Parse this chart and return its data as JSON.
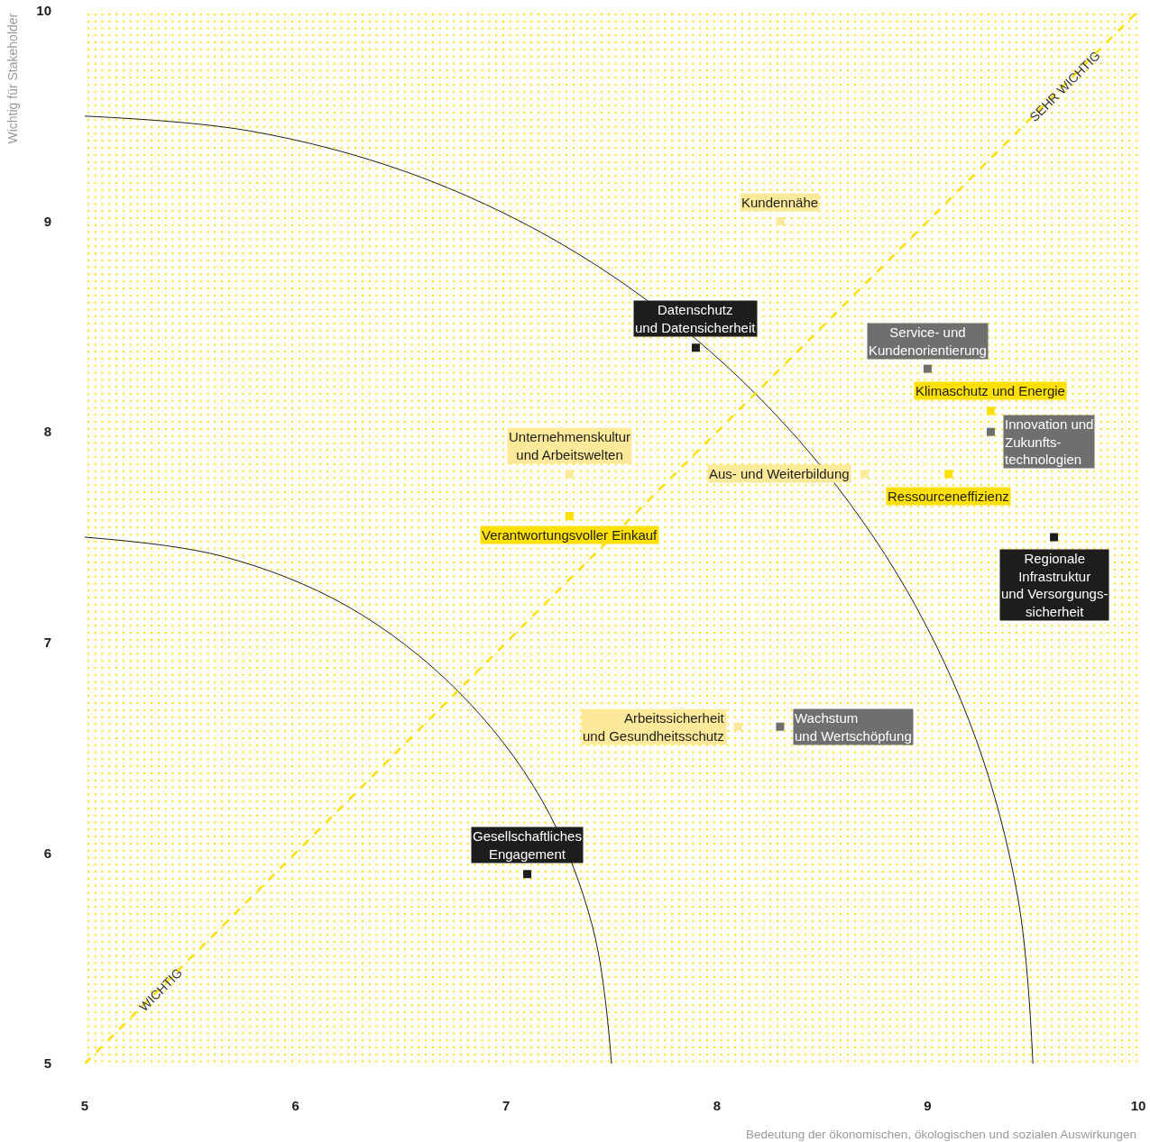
{
  "chart_data": {
    "type": "scatter",
    "xlabel": "Bedeutung der ökonomischen, ökologischen und sozialen Auswirkungen",
    "ylabel": "Wichtig für Stakeholder",
    "xlim": [
      5,
      10
    ],
    "ylim": [
      5,
      10
    ],
    "xticks": [
      5,
      6,
      7,
      8,
      9,
      10
    ],
    "yticks": [
      5,
      6,
      7,
      8,
      9,
      10
    ],
    "grid": false,
    "legend": false,
    "marker": "square",
    "annotations": [
      {
        "text": "WICHTIG",
        "x": 5.36,
        "y": 5.35
      },
      {
        "text": "SEHR WICHTIG",
        "x": 9.65,
        "y": 9.64
      }
    ],
    "series": [
      {
        "name": "Kundennähe",
        "color": "#fde99a",
        "x": [
          8.3
        ],
        "values": [
          9.0
        ]
      },
      {
        "name": "Datenschutz\nund Datensicherheit",
        "color": "#1d1d1b",
        "x": [
          7.9
        ],
        "values": [
          8.4
        ]
      },
      {
        "name": "Service- und\nKundenorientierung",
        "color": "#6f6f6f",
        "x": [
          9.0
        ],
        "values": [
          8.3
        ]
      },
      {
        "name": "Klimaschutz und Energie",
        "color": "#ffe000",
        "x": [
          9.3
        ],
        "values": [
          8.1
        ]
      },
      {
        "name": "Innovation und\nZukunfts-\ntechnologien",
        "color": "#6f6f6f",
        "x": [
          9.3
        ],
        "values": [
          8.0
        ]
      },
      {
        "name": "Unternehmenskultur\nund Arbeitswelten",
        "color": "#fde99a",
        "x": [
          7.3
        ],
        "values": [
          7.8
        ]
      },
      {
        "name": "Aus- und Weiterbildung",
        "color": "#fde99a",
        "x": [
          8.7
        ],
        "values": [
          7.8
        ]
      },
      {
        "name": "Ressourceneffizienz",
        "color": "#ffe000",
        "x": [
          9.1
        ],
        "values": [
          7.8
        ]
      },
      {
        "name": "Verantwortungsvoller Einkauf",
        "color": "#ffe000",
        "x": [
          7.3
        ],
        "values": [
          7.6
        ]
      },
      {
        "name": "Regionale\nInfrastruktur\nund Versorgungs-\nsicherheit",
        "color": "#1d1d1b",
        "x": [
          9.6
        ],
        "values": [
          7.5
        ]
      },
      {
        "name": "Arbeitssicherheit\nund Gesundheitsschutz",
        "color": "#fde99a",
        "x": [
          8.1
        ],
        "values": [
          6.6
        ]
      },
      {
        "name": "Wachstum\nund Wertschöpfung",
        "color": "#6f6f6f",
        "x": [
          8.3
        ],
        "values": [
          6.6
        ]
      },
      {
        "name": "Gesellschaftliches\nEngagement",
        "color": "#1d1d1b",
        "x": [
          7.1
        ],
        "values": [
          5.9
        ]
      },
      {
        "type": "line",
        "marker": "none",
        "color": "#1d1d1b",
        "x": [
          5,
          5.78,
          6.54,
          7.25,
          7.89,
          8.45,
          8.9,
          9.23,
          9.43,
          9.5
        ],
        "values": [
          9.5,
          9.43,
          9.23,
          8.9,
          8.45,
          7.89,
          7.25,
          6.54,
          5.78,
          5
        ]
      },
      {
        "type": "line",
        "marker": "none",
        "color": "#1d1d1b",
        "x": [
          5,
          5.65,
          6.25,
          6.77,
          7.17,
          7.41,
          7.5
        ],
        "values": [
          7.5,
          7.41,
          7.17,
          6.77,
          6.25,
          5.65,
          5
        ]
      },
      {
        "type": "line",
        "marker": "none",
        "color": "#ffe000",
        "line_style": "dashed",
        "x": [
          5,
          10
        ],
        "values": [
          5,
          10
        ]
      }
    ]
  }
}
